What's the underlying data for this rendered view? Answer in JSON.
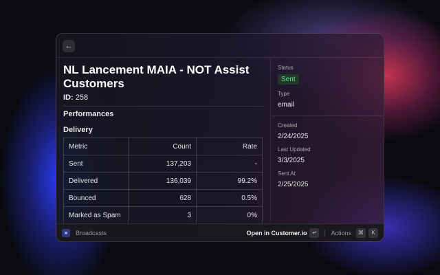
{
  "header": {
    "back_icon": "arrow-left-icon"
  },
  "campaign": {
    "title": "NL Lancement MAIA - NOT Assist Customers",
    "id_label": "ID:",
    "id_value": "258"
  },
  "sections": {
    "performances": "Performances",
    "delivery": "Delivery"
  },
  "table": {
    "headers": [
      "Metric",
      "Count",
      "Rate"
    ],
    "rows": [
      [
        "Sent",
        "137,203",
        "-"
      ],
      [
        "Delivered",
        "136,039",
        "99.2%"
      ],
      [
        "Bounced",
        "628",
        "0.5%"
      ],
      [
        "Marked as Spam",
        "3",
        "0%"
      ]
    ]
  },
  "sidebar": {
    "status_label": "Status",
    "status_value": "Sent",
    "status_color": "#5fe08a",
    "type_label": "Type",
    "type_value": "email",
    "created_label": "Created",
    "created_value": "2/24/2025",
    "updated_label": "Last Updated",
    "updated_value": "3/3/2025",
    "sent_label": "Sent At",
    "sent_value": "2/25/2025"
  },
  "footer": {
    "app_name": "Broadcasts",
    "primary_action": "Open in Customer.io",
    "enter_key": "↵",
    "actions_label": "Actions",
    "cmd_key": "⌘",
    "k_key": "K"
  }
}
